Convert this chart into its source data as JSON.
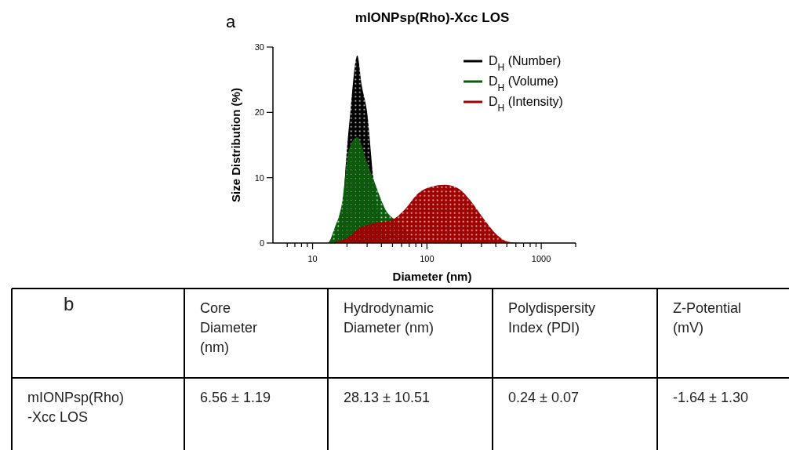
{
  "chart_data": [
    {
      "type": "area",
      "title": "mIONPsp(Rho)-Xcc LOS",
      "xlabel": "Diameter (nm)",
      "ylabel": "Size Distribution (%)",
      "log": "x",
      "legend": "top right",
      "xlim": [
        4.5,
        2000
      ],
      "xticks": [
        {
          "value": 6,
          "label": null
        },
        {
          "value": 7,
          "label": null
        },
        {
          "value": 8,
          "label": null
        },
        {
          "value": 9,
          "label": null
        },
        10,
        {
          "value": 20,
          "label": null
        },
        {
          "value": 30,
          "label": null
        },
        {
          "value": 40,
          "label": null
        },
        {
          "value": 50,
          "label": null
        },
        {
          "value": 60,
          "label": null
        },
        {
          "value": 70,
          "label": null
        },
        {
          "value": 80,
          "label": null
        },
        {
          "value": 90,
          "label": null
        },
        100,
        {
          "value": 200,
          "label": null
        },
        {
          "value": 300,
          "label": null
        },
        {
          "value": 400,
          "label": null
        },
        {
          "value": 500,
          "label": null
        },
        {
          "value": 600,
          "label": null
        },
        {
          "value": 700,
          "label": null
        },
        {
          "value": 800,
          "label": null
        },
        {
          "value": 900,
          "label": null
        },
        1000,
        {
          "value": 2000,
          "label": null
        }
      ],
      "ylim": [
        0,
        30
      ],
      "yticks": [
        0,
        10,
        20,
        30
      ],
      "annotations": [
        "a"
      ],
      "series": [
        {
          "name": "D$_{H}$ (Number)",
          "color": "#000000",
          "x": [
            15,
            17,
            18.5,
            19.5,
            21.5,
            24.6,
            27,
            30,
            34,
            38,
            42,
            46
          ],
          "values": [
            0,
            null,
            6,
            12,
            20.4,
            28.7,
            24,
            20,
            10,
            null,
            null,
            0
          ]
        },
        {
          "name": "D$_{H}$ (Volume)",
          "color": "#0a5c0a",
          "x": [
            11.5,
            13.5,
            15.5,
            18.2,
            20.7,
            24.6,
            29.9,
            35,
            44.5,
            52,
            60,
            70,
            80
          ],
          "values": [
            0,
            0,
            2.2,
            6.4,
            14.2,
            16.2,
            12.4,
            9.2,
            4.8,
            3.6,
            null,
            null,
            0
          ]
        },
        {
          "name": "D$_{H}$ (Intensity)",
          "color": "#a00000",
          "x": [
            14.6,
            20.1,
            26.3,
            34,
            50,
            64.5,
            83.6,
            109,
            143,
            186,
            243,
            317,
            412,
            510,
            660
          ],
          "values": [
            0,
            0.8,
            2.4,
            3,
            3.6,
            5.2,
            7.6,
            8.6,
            8.9,
            8.4,
            6.4,
            3.6,
            1.2,
            0.2,
            0
          ]
        }
      ]
    },
    {
      "type": "other",
      "annotations": [
        "b",
        "Core Diameter (nm)",
        "Hydrodynamic Diameter (nm)",
        "Polydispersity Index (PDI)",
        "Z-Potential (mV)",
        "mIONPsp(Rho) -Xcc LOS",
        "6.56 ± 1.19",
        "28.13 ± 10.51",
        "0.24 ± 0.07",
        "-1.64 ± 1.30"
      ]
    }
  ]
}
